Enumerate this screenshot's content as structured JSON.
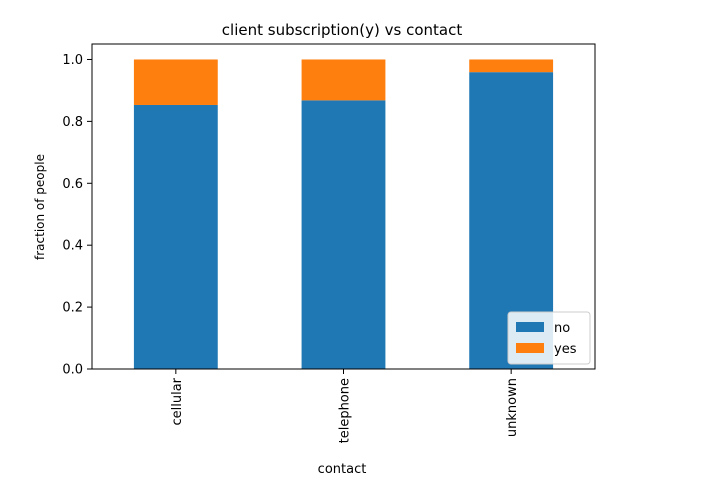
{
  "chart_data": {
    "type": "bar",
    "stacked": true,
    "title": "client subscription(y) vs contact",
    "xlabel": "contact",
    "ylabel": "fraction of people",
    "categories": [
      "cellular",
      "telephone",
      "unknown"
    ],
    "series": [
      {
        "name": "no",
        "values": [
          0.853,
          0.868,
          0.959
        ],
        "color": "#1f77b4"
      },
      {
        "name": "yes",
        "values": [
          0.147,
          0.132,
          0.041
        ],
        "color": "#ff7f0e"
      }
    ],
    "ylim": [
      0,
      1.05
    ],
    "yticks": [
      0.0,
      0.2,
      0.4,
      0.6,
      0.8,
      1.0
    ],
    "ytick_labels": [
      "0.0",
      "0.2",
      "0.4",
      "0.6",
      "0.8",
      "1.0"
    ],
    "legend_position": "lower-right",
    "grid": false
  }
}
